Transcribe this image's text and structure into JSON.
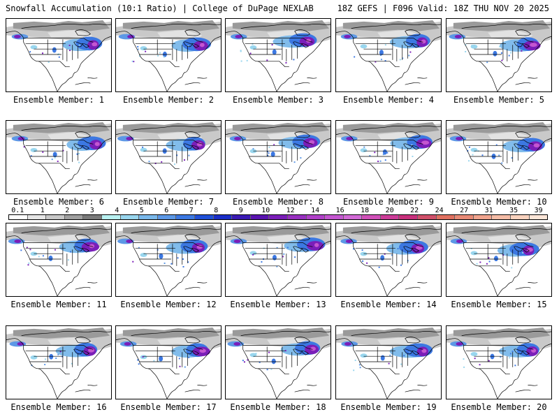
{
  "header": {
    "title_left": "Snowfall Accumulation (10:1 Ratio) | College of DuPage NEXLAB",
    "title_right": "18Z GEFS | F096 Valid: 18Z THU NOV 20 2025"
  },
  "legend": {
    "ticks": [
      "0.1",
      "1",
      "2",
      "3",
      "4",
      "5",
      "6",
      "7",
      "8",
      "9",
      "10",
      "12",
      "14",
      "16",
      "18",
      "20",
      "22",
      "24",
      "27",
      "31",
      "35",
      "39"
    ],
    "colors": [
      "#ffffff",
      "#e6e6e6",
      "#c8c8c8",
      "#a0a0a0",
      "#7a7a7a",
      "#b9f2f2",
      "#99d6ee",
      "#7ab8ea",
      "#5c98e6",
      "#3c78e2",
      "#2050d8",
      "#1a2ec8",
      "#3a1ab4",
      "#5a14b0",
      "#7a1eb8",
      "#9830c0",
      "#b040c8",
      "#c456d0",
      "#d26ad6",
      "#d050b8",
      "#cc3c98",
      "#c8307c",
      "#d0506a",
      "#e07060",
      "#e88a76",
      "#f0a48e",
      "#f4bca6",
      "#f8d2be",
      "#fce6d8"
    ]
  },
  "members": [
    {
      "label": "Ensemble Member: 1"
    },
    {
      "label": "Ensemble Member: 2"
    },
    {
      "label": "Ensemble Member: 3"
    },
    {
      "label": "Ensemble Member: 4"
    },
    {
      "label": "Ensemble Member: 5"
    },
    {
      "label": "Ensemble Member: 6"
    },
    {
      "label": "Ensemble Member: 7"
    },
    {
      "label": "Ensemble Member: 8"
    },
    {
      "label": "Ensemble Member: 9"
    },
    {
      "label": "Ensemble Member: 10"
    },
    {
      "label": "Ensemble Member: 11"
    },
    {
      "label": "Ensemble Member: 12"
    },
    {
      "label": "Ensemble Member: 13"
    },
    {
      "label": "Ensemble Member: 14"
    },
    {
      "label": "Ensemble Member: 15"
    },
    {
      "label": "Ensemble Member: 16"
    },
    {
      "label": "Ensemble Member: 17"
    },
    {
      "label": "Ensemble Member: 18"
    },
    {
      "label": "Ensemble Member: 19"
    },
    {
      "label": "Ensemble Member: 20"
    }
  ]
}
